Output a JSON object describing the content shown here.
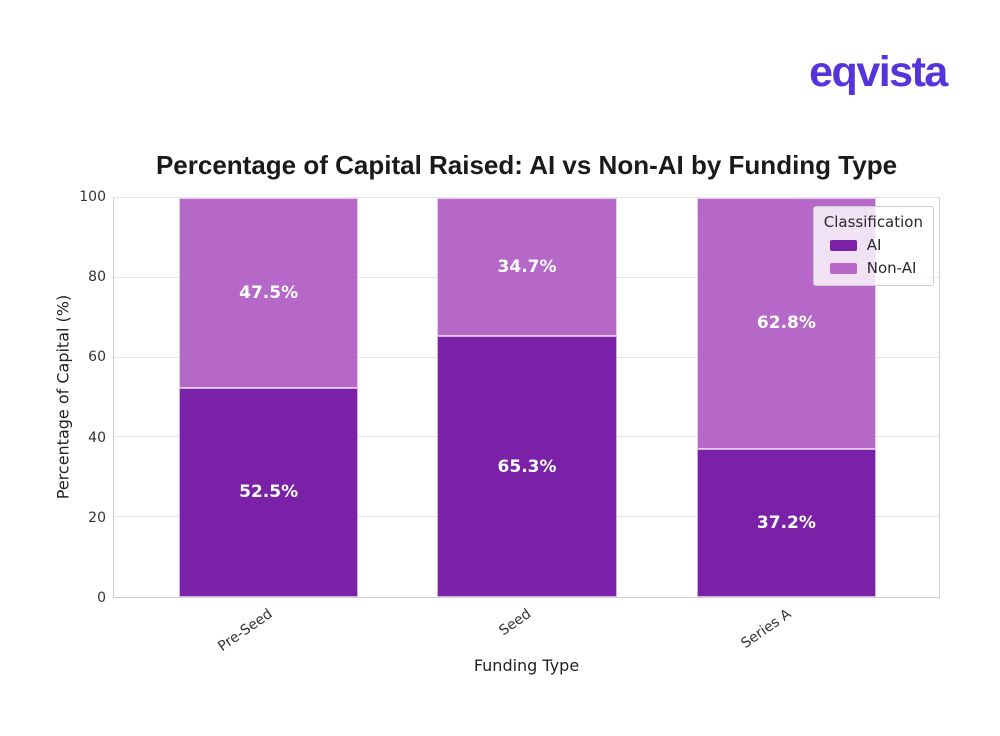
{
  "logo": {
    "text": "eqvista",
    "color": "#5733DC"
  },
  "chart_data": {
    "type": "bar",
    "stacked": true,
    "title": "Percentage of Capital Raised: AI vs Non-AI by Funding Type",
    "xlabel": "Funding Type",
    "ylabel": "Percentage of Capital (%)",
    "categories": [
      "Pre-Seed",
      "Seed",
      "Series A"
    ],
    "series": [
      {
        "name": "AI",
        "color": "#7A21A8",
        "values": [
          52.5,
          65.3,
          37.2
        ],
        "labels": [
          "52.5%",
          "65.3%",
          "37.2%"
        ]
      },
      {
        "name": "Non-AI",
        "color": "#B668C8",
        "values": [
          47.5,
          34.7,
          62.8
        ],
        "labels": [
          "47.5%",
          "34.7%",
          "62.8%"
        ]
      }
    ],
    "ylim": [
      0,
      100
    ],
    "yticks": [
      0,
      20,
      40,
      60,
      80,
      100
    ],
    "grid": true,
    "legend": {
      "title": "Classification",
      "entries": [
        "AI",
        "Non-AI"
      ],
      "position": "upper right"
    },
    "colors": {
      "grid": "#e4e4e4",
      "spine": "#cfcfcf",
      "tick_text": "#333333",
      "title_text": "#1a1a1a",
      "value_label": "#ffffff"
    }
  }
}
